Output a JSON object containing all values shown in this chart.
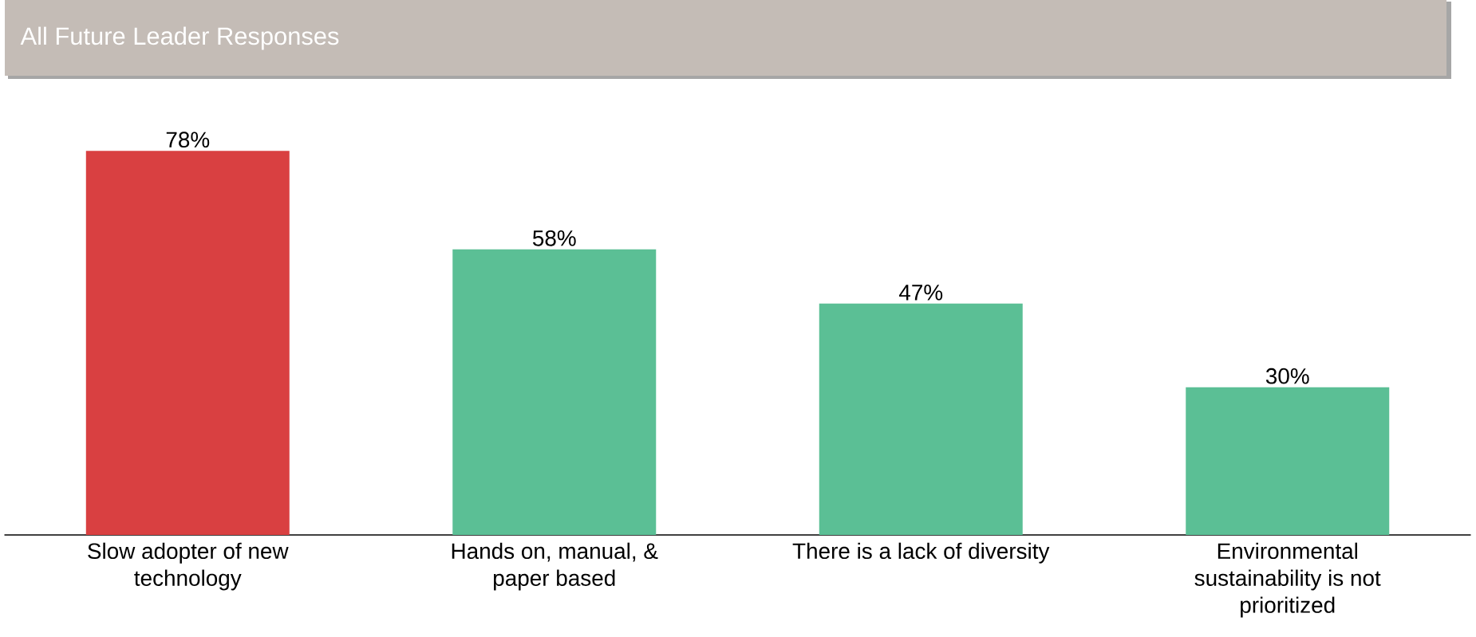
{
  "chart_data": {
    "type": "bar",
    "title": "All Future Leader Responses",
    "categories": [
      "Slow adopter of new technology",
      "Hands on, manual, & paper based",
      "There is a lack of diversity",
      "Environmental sustainability is not prioritized"
    ],
    "values": [
      78,
      58,
      47,
      30
    ],
    "value_labels": [
      "78%",
      "58%",
      "47%",
      "30%"
    ],
    "colors": [
      "#d94041",
      "#5bbf95",
      "#5bbf95",
      "#5bbf95"
    ]
  }
}
